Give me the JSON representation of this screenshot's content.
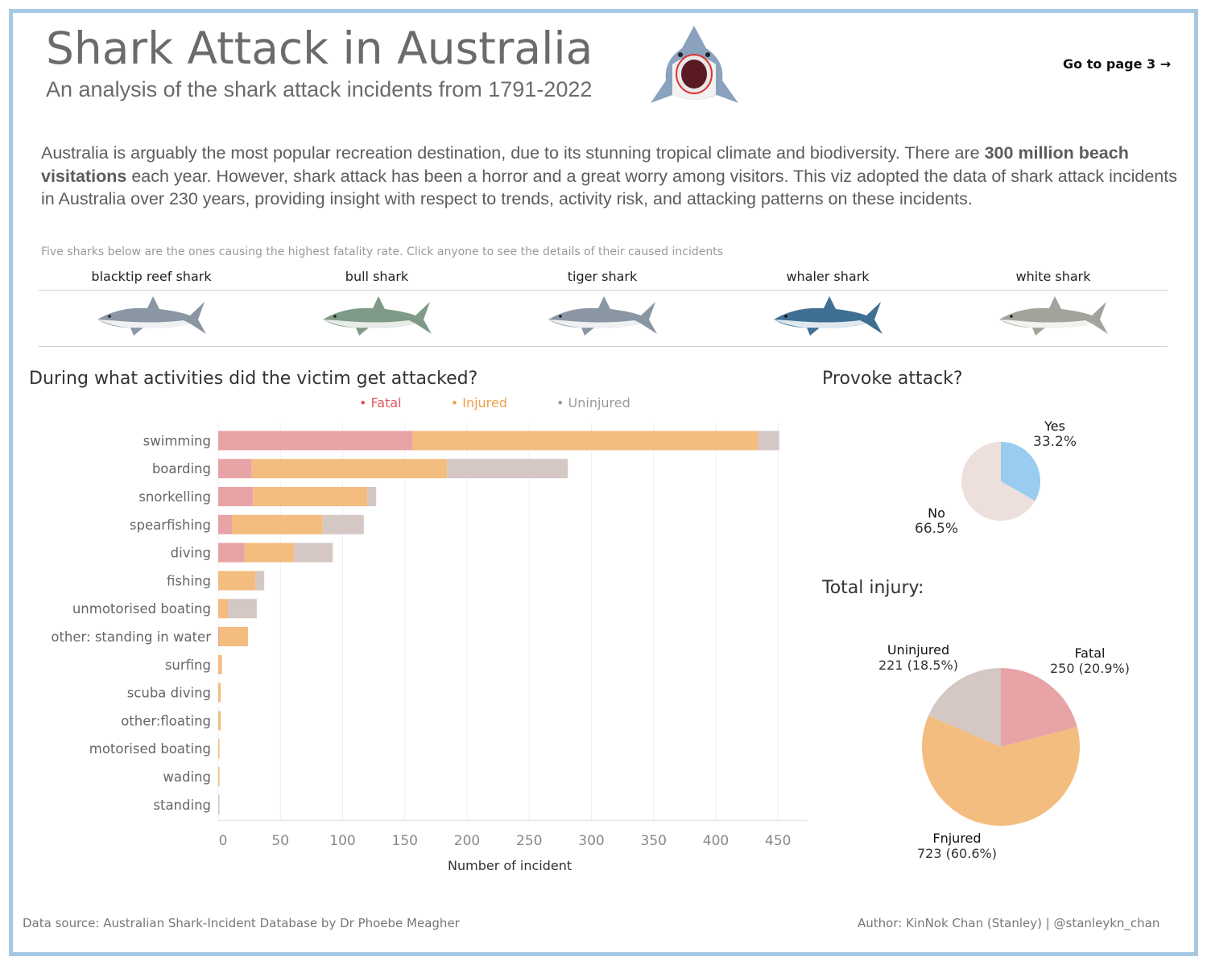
{
  "header": {
    "title": "Shark Attack in Australia",
    "subtitle": "An analysis of the shark attack incidents from 1791-2022",
    "goto_label": "Go to page 3 →",
    "hero_icon": "shark-mouth-open-icon"
  },
  "intro": {
    "part1": "Australia is arguably the most popular recreation destination, due to its stunning tropical climate and biodiversity. There are ",
    "bold": "300 million beach visitations",
    "part2": " each year. However, shark attack has been a horror and a great worry among visitors. This viz adopted the data of shark attack incidents in Australia over 230 years, providing insight with respect to trends, activity risk, and attacking patterns on these incidents."
  },
  "sharks": {
    "hint": "Five sharks below are the ones causing the highest fatality rate. Click anyone to see the details of their caused incidents",
    "items": [
      {
        "name": "blacktip reef shark",
        "icon": "blacktip-reef-shark-icon",
        "color": "#8a96a3"
      },
      {
        "name": "bull shark",
        "icon": "bull-shark-icon",
        "color": "#7f9a86"
      },
      {
        "name": "tiger shark",
        "icon": "tiger-shark-icon",
        "color": "#8a96a3"
      },
      {
        "name": "whaler shark",
        "icon": "whaler-shark-icon",
        "color": "#3f6f93"
      },
      {
        "name": "white shark",
        "icon": "white-shark-icon",
        "color": "#a3a39c"
      }
    ]
  },
  "activity_chart": {
    "title": "During what activities did the victim get attacked?"
  },
  "provoke_chart": {
    "title": "Provoke attack?"
  },
  "injury_chart": {
    "title": "Total injury:"
  },
  "colors": {
    "fatal": "#e8a3a6",
    "injured": "#f3bd7f",
    "uninjured": "#d5c7c4",
    "fatal_legend": "#e0585f",
    "injured_legend": "#f0a04b",
    "uninjured_legend": "#9a9a9a",
    "provoke_yes": "#99ccef",
    "provoke_no": "#ede0dc",
    "frame": "#a7c8e2"
  },
  "chart_data": [
    {
      "type": "bar",
      "orientation": "horizontal",
      "stacked": true,
      "title": "During what activities did the victim get attacked?",
      "xlabel": "Number of incident",
      "ylabel": "",
      "xlim": [
        0,
        470
      ],
      "xticks": [
        0,
        50,
        100,
        150,
        200,
        250,
        300,
        350,
        400,
        450
      ],
      "legend": "top",
      "grid": true,
      "categories": [
        "swimming",
        "boarding",
        "snorkelling",
        "spearfishing",
        "diving",
        "fishing",
        "unmotorised boating",
        "other: standing in water",
        "surfing",
        "scuba diving",
        "other:floating",
        "motorised boating",
        "wading",
        "standing"
      ],
      "series": [
        {
          "name": "Fatal",
          "values": [
            156,
            27,
            28,
            11,
            21,
            0,
            0,
            1,
            0,
            0,
            0,
            0,
            0,
            0
          ]
        },
        {
          "name": "Injured",
          "values": [
            278,
            157,
            92,
            73,
            40,
            30,
            8,
            23,
            3,
            2,
            2,
            1,
            1,
            0
          ]
        },
        {
          "name": "Uninjured",
          "values": [
            17,
            97,
            7,
            33,
            31,
            7,
            23,
            0,
            0,
            0,
            0,
            0,
            0,
            1
          ]
        }
      ]
    },
    {
      "type": "pie",
      "title": "Provoke attack?",
      "slices": [
        {
          "name": "Yes",
          "value": 33.2,
          "label": "33.2%"
        },
        {
          "name": "No",
          "value": 66.5,
          "label": "66.5%"
        }
      ]
    },
    {
      "type": "pie",
      "title": "Total injury:",
      "slices": [
        {
          "name": "Fatal",
          "value": 250,
          "label": "250 (20.9%)"
        },
        {
          "name": "Fnjured",
          "value": 723,
          "label": "723 (60.6%)"
        },
        {
          "name": "Uninjured",
          "value": 221,
          "label": "221 (18.5%)"
        }
      ]
    }
  ],
  "footer": {
    "source": "Data source: Australian Shark-Incident Database by Dr Phoebe Meagher",
    "author": "Author: KinNok Chan (Stanley) | @stanleykn_chan"
  }
}
